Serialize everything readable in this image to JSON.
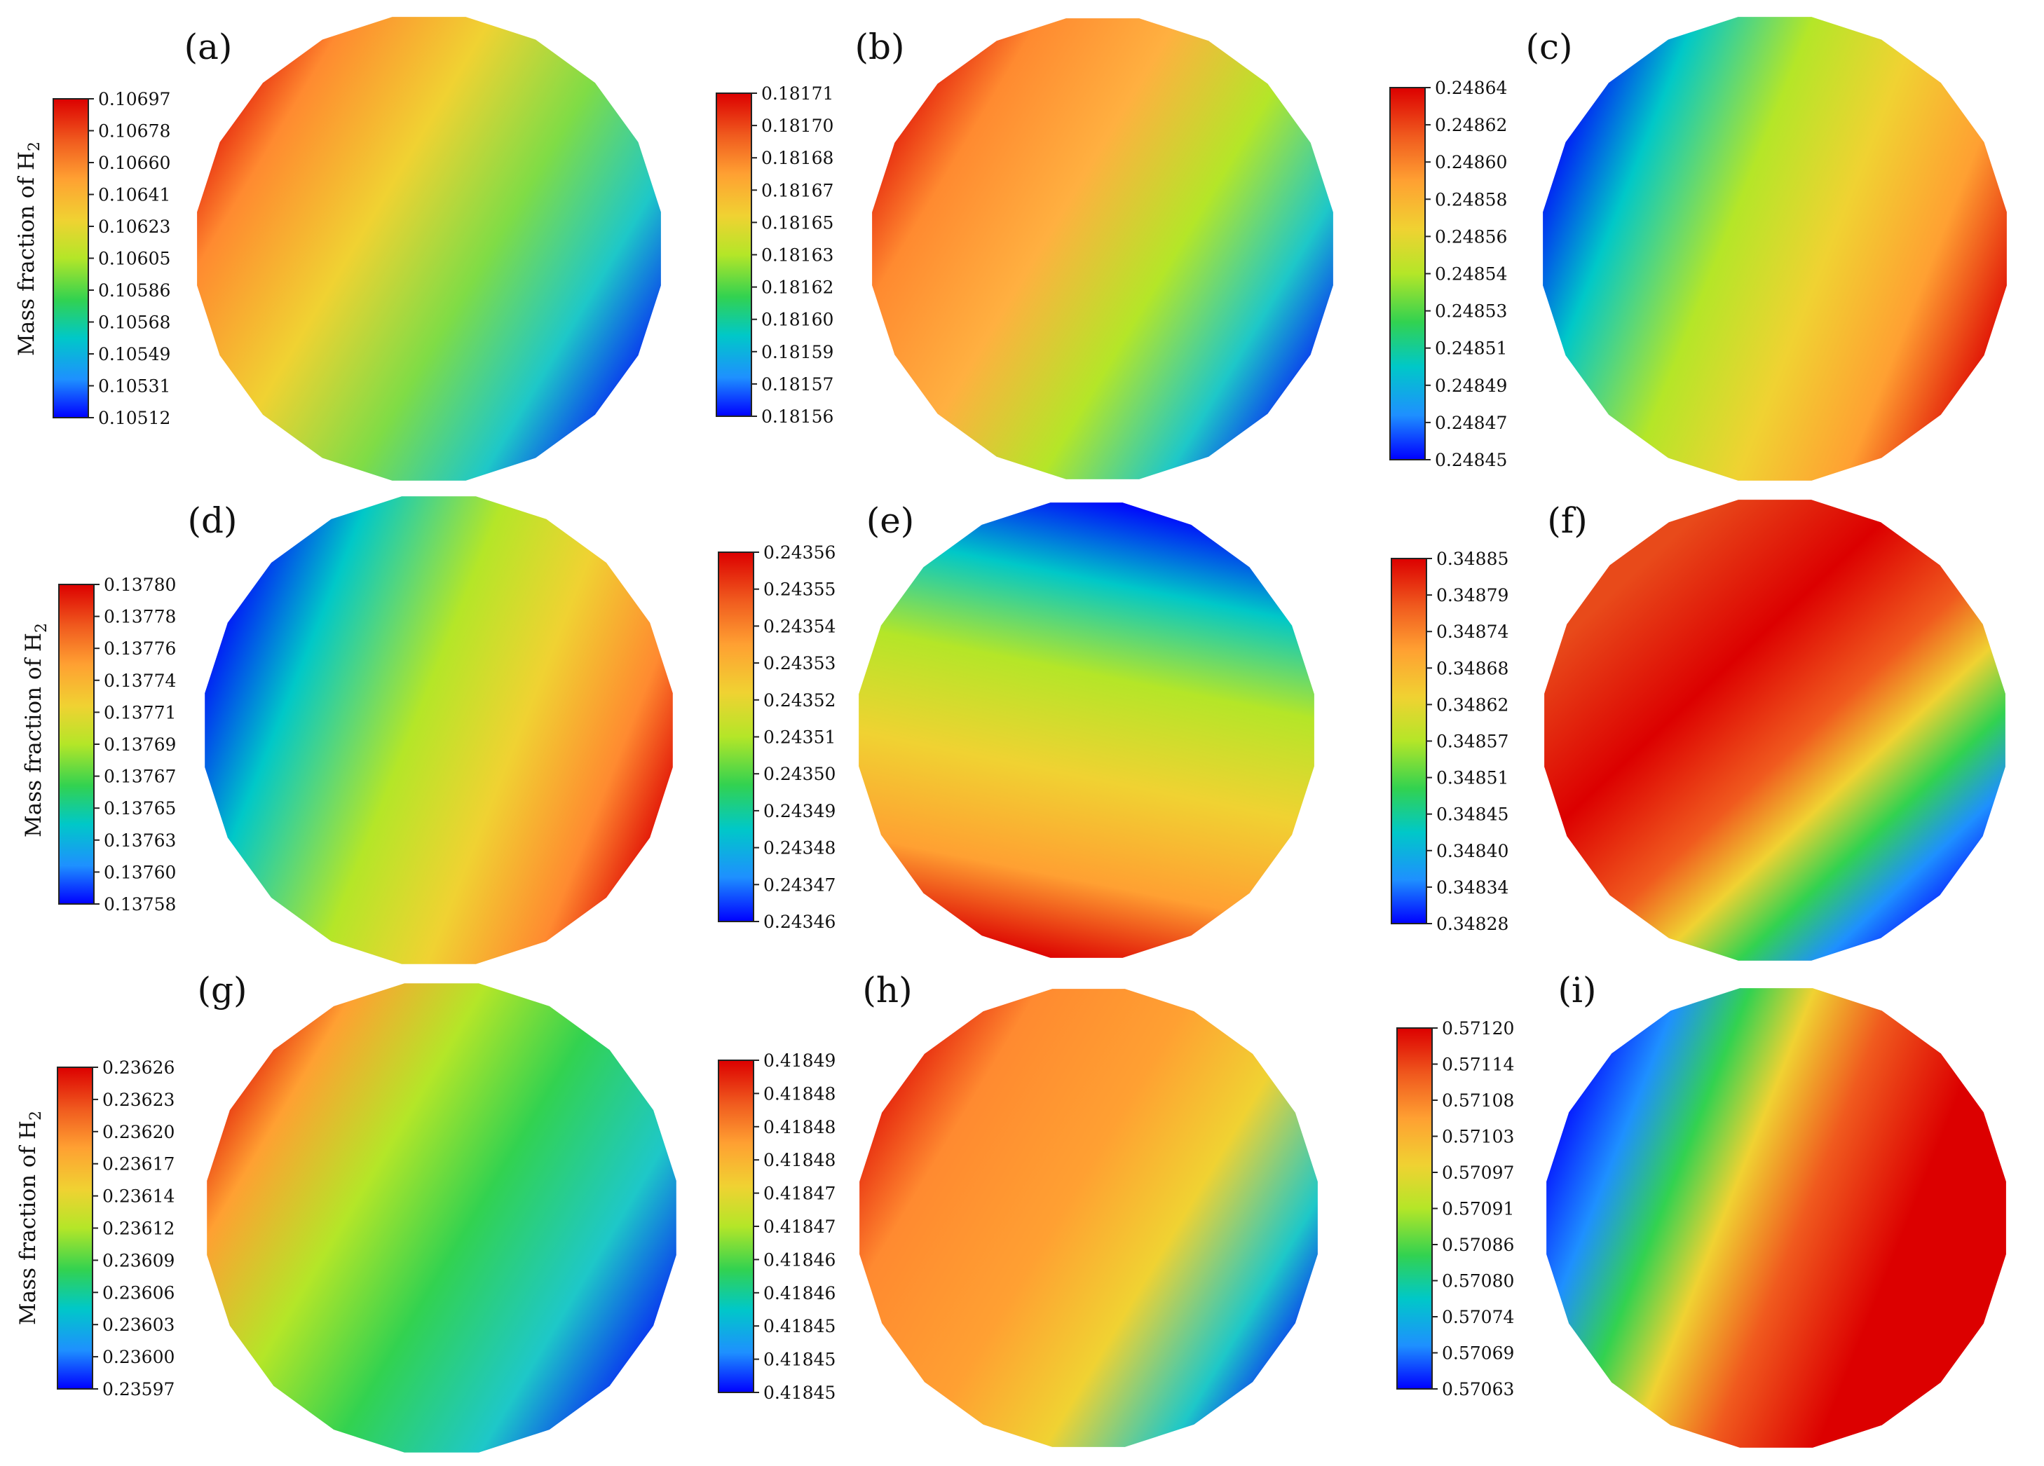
{
  "figure": {
    "row_ylabel": "Mass fraction of H",
    "row_ylabel_sub": "2",
    "panels": [
      {
        "label": "(a)",
        "colorbar_ticks": [
          "0.10697",
          "0.10678",
          "0.10660",
          "0.10641",
          "0.10623",
          "0.10605",
          "0.10586",
          "0.10568",
          "0.10549",
          "0.10531",
          "0.10512"
        ]
      },
      {
        "label": "(b)",
        "colorbar_ticks": [
          "0.18171",
          "0.18170",
          "0.18168",
          "0.18167",
          "0.18165",
          "0.18163",
          "0.18162",
          "0.18160",
          "0.18159",
          "0.18157",
          "0.18156"
        ]
      },
      {
        "label": "(c)",
        "colorbar_ticks": [
          "0.24864",
          "0.24862",
          "0.24860",
          "0.24858",
          "0.24856",
          "0.24854",
          "0.24853",
          "0.24851",
          "0.24849",
          "0.24847",
          "0.24845"
        ]
      },
      {
        "label": "(d)",
        "colorbar_ticks": [
          "0.13780",
          "0.13778",
          "0.13776",
          "0.13774",
          "0.13771",
          "0.13769",
          "0.13767",
          "0.13765",
          "0.13763",
          "0.13760",
          "0.13758"
        ]
      },
      {
        "label": "(e)",
        "colorbar_ticks": [
          "0.24356",
          "0.24355",
          "0.24354",
          "0.24353",
          "0.24352",
          "0.24351",
          "0.24350",
          "0.24349",
          "0.24348",
          "0.24347",
          "0.24346"
        ]
      },
      {
        "label": "(f)",
        "colorbar_ticks": [
          "0.34885",
          "0.34879",
          "0.34874",
          "0.34868",
          "0.34862",
          "0.34857",
          "0.34851",
          "0.34845",
          "0.34840",
          "0.34834",
          "0.34828"
        ]
      },
      {
        "label": "(g)",
        "colorbar_ticks": [
          "0.23626",
          "0.23623",
          "0.23620",
          "0.23617",
          "0.23614",
          "0.23612",
          "0.23609",
          "0.23606",
          "0.23603",
          "0.23600",
          "0.23597"
        ]
      },
      {
        "label": "(h)",
        "colorbar_ticks": [
          "0.41849",
          "0.41848",
          "0.41848",
          "0.41848",
          "0.41847",
          "0.41847",
          "0.41846",
          "0.41846",
          "0.41845",
          "0.41845",
          "0.41845"
        ]
      },
      {
        "label": "(i)",
        "colorbar_ticks": [
          "0.57120",
          "0.57114",
          "0.57108",
          "0.57103",
          "0.57097",
          "0.57091",
          "0.57086",
          "0.57080",
          "0.57074",
          "0.57069",
          "0.57063"
        ]
      }
    ]
  },
  "colormap": [
    "#0000ff",
    "#1e90ff",
    "#00c8c8",
    "#32d250",
    "#b4e628",
    "#f0d232",
    "#ffa032",
    "#f05a1e",
    "#dc0000"
  ]
}
